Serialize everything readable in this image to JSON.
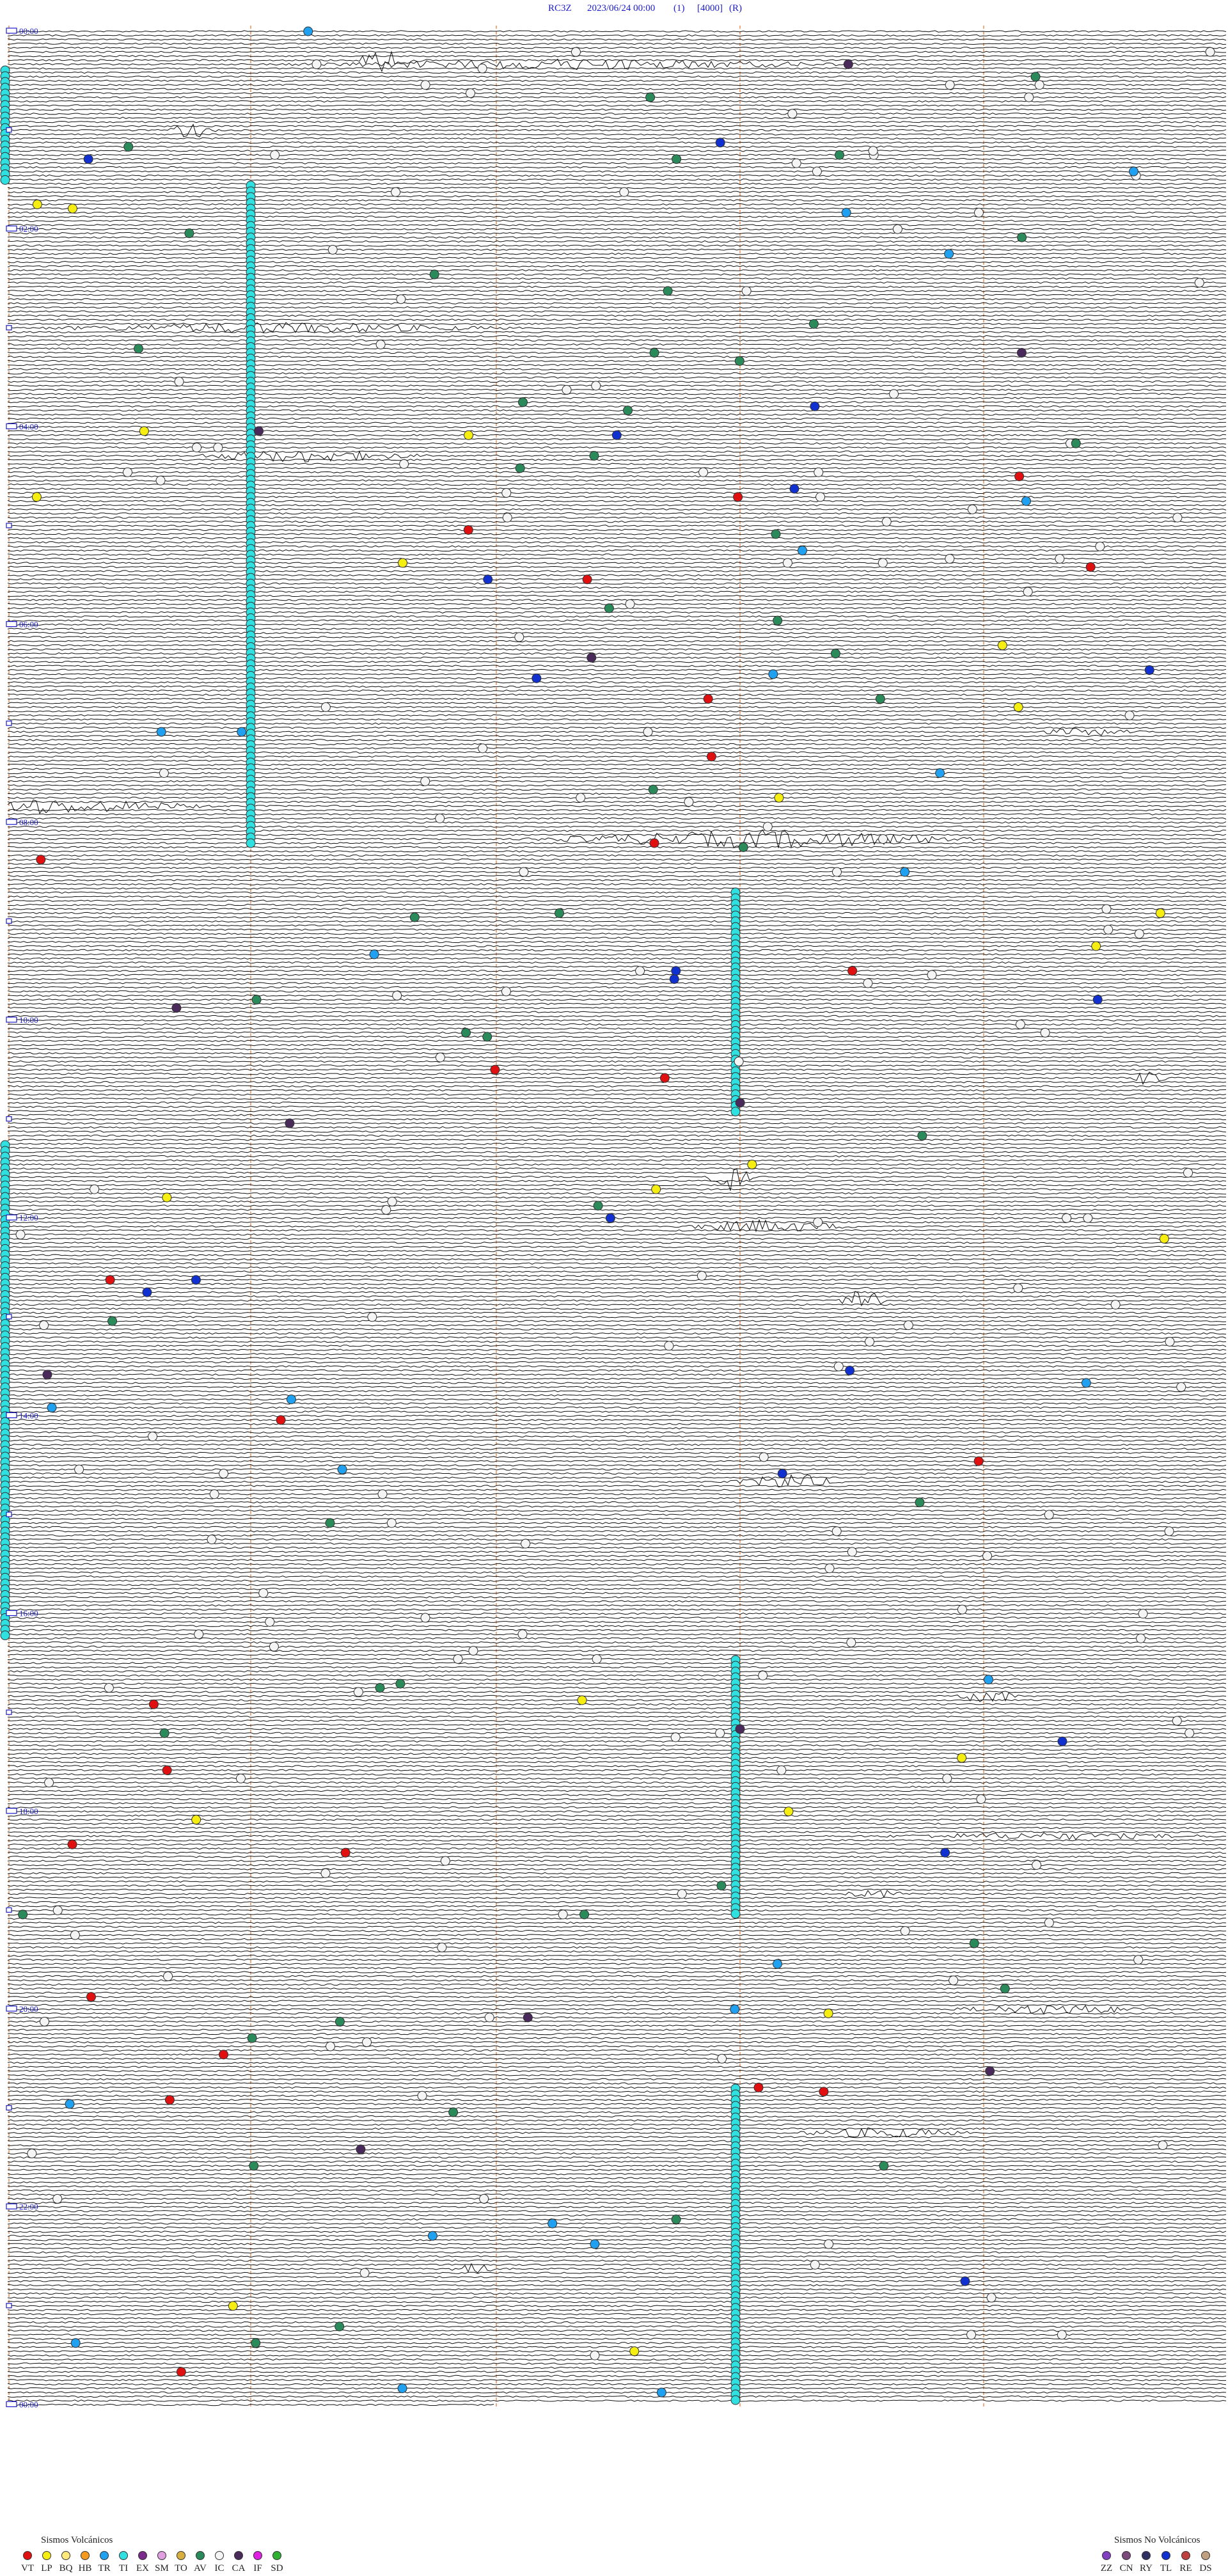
{
  "header": {
    "station": "RC3Z",
    "datetime": "2023/06/24 00:00",
    "channel": "(1)",
    "gain": "[4000]",
    "mode": "(R)"
  },
  "time_labels": [
    "00:00",
    "02:00",
    "04:00",
    "06:00",
    "08:00",
    "10:00",
    "12:00",
    "14:00",
    "16:00",
    "18:00",
    "20:00",
    "22:00",
    "00:00"
  ],
  "legend": {
    "volcanic": {
      "title": "Sismos Volcánicos",
      "codes": [
        "VT",
        "LP",
        "BQ",
        "HB",
        "TR",
        "TI",
        "EX",
        "SM",
        "TO",
        "AV",
        "IC",
        "CA",
        "IF",
        "SD"
      ]
    },
    "non_volcanic": {
      "title": "Sismos No Volcánicos",
      "codes": [
        "ZZ",
        "CN",
        "RY",
        "TL",
        "RE",
        "DS"
      ]
    }
  }
}
